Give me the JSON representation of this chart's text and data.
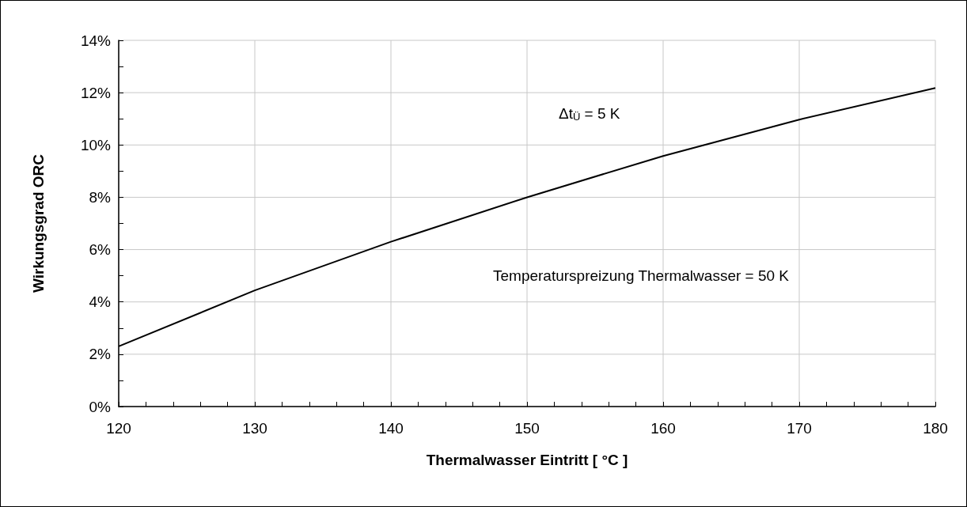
{
  "chart_data": {
    "type": "line",
    "xlabel": "Thermalwasser Eintritt [ °C ]",
    "ylabel": "Wirkungsgrad ORC",
    "x": [
      120,
      130,
      140,
      150,
      160,
      170,
      180
    ],
    "series": [
      {
        "color": "#000000",
        "values": [
          2.3,
          4.44,
          6.3,
          8.0,
          9.58,
          10.97,
          12.18
        ]
      }
    ],
    "xlim": [
      120,
      180
    ],
    "ylim": [
      0,
      14
    ],
    "xticks": [
      120,
      {
        "value": 122,
        "label": null
      },
      {
        "value": 124,
        "label": null
      },
      {
        "value": 126,
        "label": null
      },
      {
        "value": 128,
        "label": null
      },
      130,
      {
        "value": 132,
        "label": null
      },
      {
        "value": 134,
        "label": null
      },
      {
        "value": 136,
        "label": null
      },
      {
        "value": 138,
        "label": null
      },
      140,
      {
        "value": 142,
        "label": null
      },
      {
        "value": 144,
        "label": null
      },
      {
        "value": 146,
        "label": null
      },
      {
        "value": 148,
        "label": null
      },
      150,
      {
        "value": 152,
        "label": null
      },
      {
        "value": 154,
        "label": null
      },
      {
        "value": 156,
        "label": null
      },
      {
        "value": 158,
        "label": null
      },
      160,
      {
        "value": 162,
        "label": null
      },
      {
        "value": 164,
        "label": null
      },
      {
        "value": 166,
        "label": null
      },
      {
        "value": 168,
        "label": null
      },
      170,
      {
        "value": 172,
        "label": null
      },
      {
        "value": 174,
        "label": null
      },
      {
        "value": 176,
        "label": null
      },
      {
        "value": 178,
        "label": null
      },
      180
    ],
    "yticks": [
      {
        "value": 0,
        "label": "0%"
      },
      {
        "value": 1,
        "label": null
      },
      {
        "value": 2,
        "label": "2%"
      },
      {
        "value": 3,
        "label": null
      },
      {
        "value": 4,
        "label": "4%"
      },
      {
        "value": 5,
        "label": null
      },
      {
        "value": 6,
        "label": "6%"
      },
      {
        "value": 7,
        "label": null
      },
      {
        "value": 8,
        "label": "8%"
      },
      {
        "value": 9,
        "label": null
      },
      {
        "value": 10,
        "label": "10%"
      },
      {
        "value": 11,
        "label": null
      },
      {
        "value": 12,
        "label": "12%"
      },
      {
        "value": 13,
        "label": null
      },
      {
        "value": 14,
        "label": "14%"
      }
    ],
    "annotations": [
      "Δt$_{Ü}$ = 5 K",
      "Temperaturspreizung Thermalwasser = 50 K"
    ],
    "grid": true,
    "marker": "none",
    "line_style": "solid"
  }
}
